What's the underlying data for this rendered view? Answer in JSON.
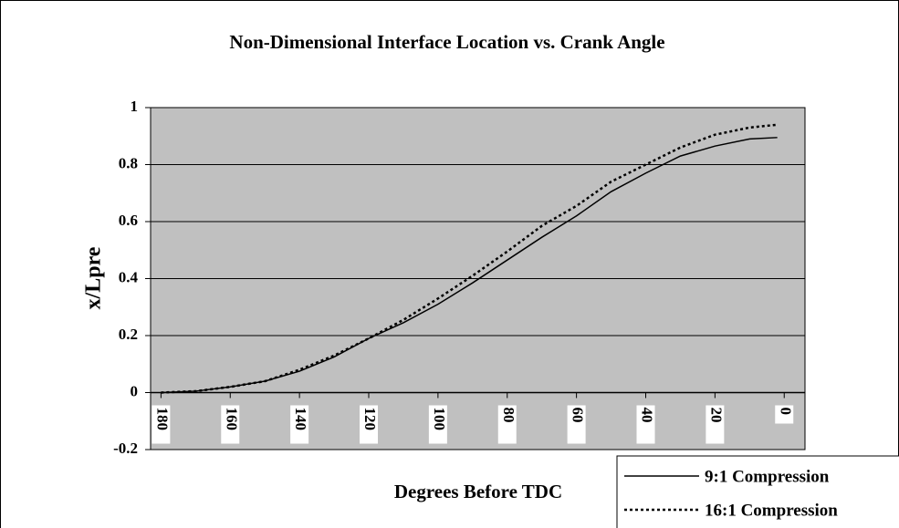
{
  "chart_data": {
    "type": "line",
    "title": "Non-Dimensional Interface Location vs. Crank Angle",
    "x_label": "Degrees Before TDC",
    "y_label": "x/Lpre",
    "x": [
      180,
      170,
      160,
      150,
      140,
      130,
      120,
      110,
      100,
      90,
      80,
      70,
      60,
      50,
      40,
      30,
      20,
      10,
      2
    ],
    "series": [
      {
        "name": "9:1 Compression",
        "color": "#000000",
        "dash": "solid",
        "values": [
          0,
          0.005,
          0.02,
          0.04,
          0.075,
          0.125,
          0.19,
          0.245,
          0.31,
          0.385,
          0.465,
          0.545,
          0.62,
          0.705,
          0.77,
          0.83,
          0.865,
          0.89,
          0.895
        ]
      },
      {
        "name": "16:1 Compression",
        "color": "#000000",
        "dash": "dotted",
        "values": [
          0,
          0.005,
          0.02,
          0.04,
          0.08,
          0.13,
          0.19,
          0.255,
          0.33,
          0.41,
          0.495,
          0.585,
          0.655,
          0.74,
          0.8,
          0.86,
          0.905,
          0.93,
          0.94
        ]
      }
    ],
    "xlim": [
      183,
      -6
    ],
    "xticks": [
      180,
      160,
      140,
      120,
      100,
      80,
      60,
      40,
      20,
      0
    ],
    "ylim": [
      -0.2,
      1
    ],
    "yticks": [
      -0.2,
      0,
      0.2,
      0.4,
      0.6,
      0.8,
      1
    ],
    "grid": true,
    "legend": "bottom-right",
    "plot_background": "#c0c0c0"
  }
}
